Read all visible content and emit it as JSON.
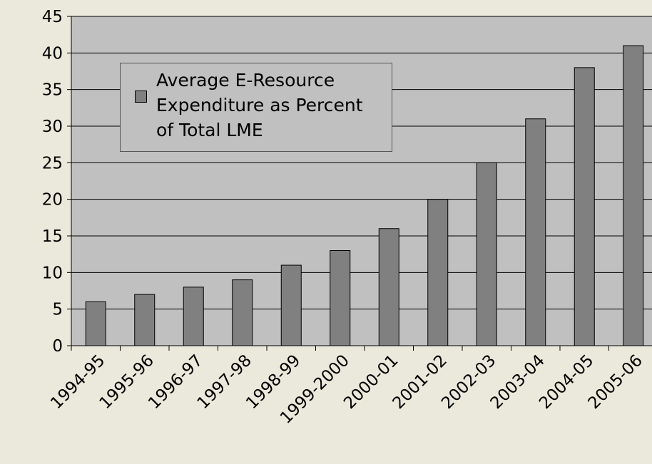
{
  "chart_data": {
    "type": "bar",
    "categories": [
      "1994-95",
      "1995-96",
      "1996-97",
      "1997-98",
      "1998-99",
      "1999-2000",
      "2000-01",
      "2001-02",
      "2002-03",
      "2003-04",
      "2004-05",
      "2005-06"
    ],
    "series": [
      {
        "name": "Average E-Resource Expenditure as Percent of Total LME",
        "color": "#808080",
        "values": [
          6,
          7,
          8,
          9,
          11,
          13,
          16,
          20,
          25,
          31,
          38,
          41
        ]
      }
    ],
    "ylim": [
      0,
      45
    ],
    "yticks": [
      0,
      5,
      10,
      15,
      20,
      25,
      30,
      35,
      40,
      45
    ],
    "grid": true
  }
}
